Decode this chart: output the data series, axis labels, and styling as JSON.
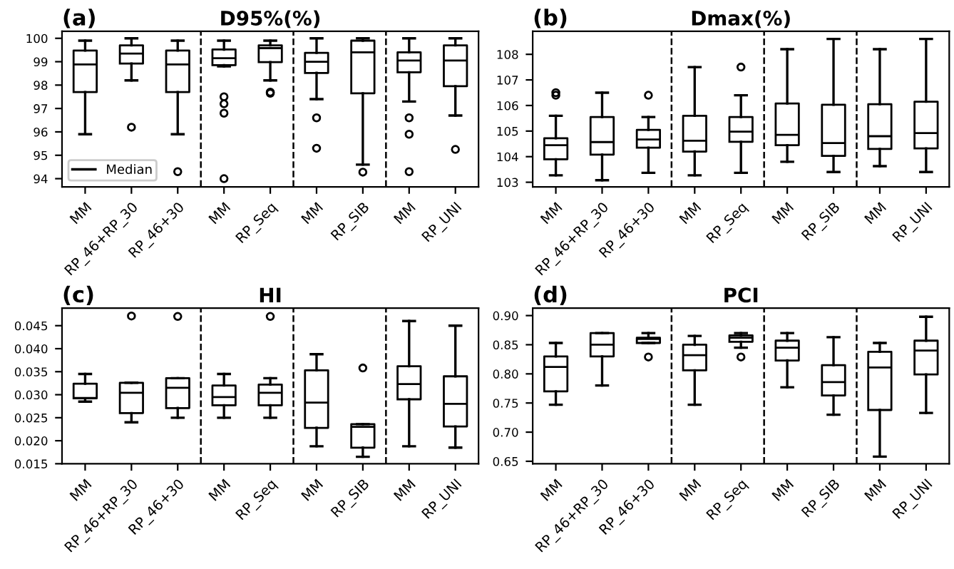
{
  "chart_data": [
    {
      "type": "box",
      "title": "D95%(%)",
      "annotations": [
        "(a)"
      ],
      "categories": [
        "MM",
        "RP_46+RP_30",
        "RP_46+30",
        "MM",
        "RP_Seq",
        "MM",
        "RP_SIB",
        "MM",
        "RP_UNI"
      ],
      "series": [
        {
          "name": "Median",
          "color": "#000000",
          "boxes": [
            {
              "low": 95.9,
              "q1": 97.7,
              "median": 98.88,
              "q3": 99.48,
              "high": 99.9
            },
            {
              "low": 98.2,
              "q1": 98.92,
              "median": 99.35,
              "q3": 99.7,
              "high": 100,
              "outliers": [
                96.2
              ]
            },
            {
              "low": 95.9,
              "q1": 97.7,
              "median": 98.88,
              "q3": 99.48,
              "high": 99.9,
              "outliers": [
                94.3
              ]
            },
            {
              "low": 98.8,
              "q1": 98.85,
              "median": 99.15,
              "q3": 99.52,
              "high": 99.9,
              "outliers": [
                97.5,
                97.2,
                96.8,
                94.0
              ]
            },
            {
              "low": 98.2,
              "q1": 98.98,
              "median": 99.58,
              "q3": 99.7,
              "high": 99.9,
              "outliers": [
                97.7,
                97.65
              ]
            },
            {
              "low": 97.4,
              "q1": 98.52,
              "median": 99.0,
              "q3": 99.38,
              "high": 100,
              "outliers": [
                96.6,
                95.3
              ]
            },
            {
              "low": 94.6,
              "q1": 97.65,
              "median": 99.4,
              "q3": 99.9,
              "high": 100,
              "outliers": [
                94.28
              ]
            },
            {
              "low": 97.3,
              "q1": 98.55,
              "median": 99.05,
              "q3": 99.4,
              "high": 100,
              "outliers": [
                96.6,
                95.9,
                94.3
              ]
            },
            {
              "low": 96.7,
              "q1": 97.95,
              "median": 99.05,
              "q3": 99.7,
              "high": 100,
              "outliers": [
                95.25
              ]
            }
          ]
        }
      ],
      "ylim": [
        93.65,
        100.3
      ],
      "yticks": [
        94,
        95,
        96,
        97,
        98,
        99,
        100
      ],
      "legend": "bottom left"
    },
    {
      "type": "box",
      "title": "Dmax(%)",
      "annotations": [
        "(b)"
      ],
      "categories": [
        "MM",
        "RP_46+RP_30",
        "RP_46+30",
        "MM",
        "RP_Seq",
        "MM",
        "RP_SIB",
        "MM",
        "RP_UNI"
      ],
      "boxes": [
        {
          "low": 103.27,
          "q1": 103.9,
          "median": 104.45,
          "q3": 104.72,
          "high": 105.6,
          "outliers": [
            106.5,
            106.4
          ]
        },
        {
          "low": 103.08,
          "q1": 104.08,
          "median": 104.57,
          "q3": 105.55,
          "high": 106.5
        },
        {
          "low": 103.37,
          "q1": 104.35,
          "median": 104.67,
          "q3": 105.05,
          "high": 105.55,
          "outliers": [
            106.4
          ]
        },
        {
          "low": 103.27,
          "q1": 104.2,
          "median": 104.62,
          "q3": 105.6,
          "high": 107.5
        },
        {
          "low": 103.37,
          "q1": 104.58,
          "median": 104.98,
          "q3": 105.55,
          "high": 106.4,
          "outliers": [
            107.5
          ]
        },
        {
          "low": 103.8,
          "q1": 104.45,
          "median": 104.85,
          "q3": 106.08,
          "high": 108.2
        },
        {
          "low": 103.4,
          "q1": 104.03,
          "median": 104.53,
          "q3": 106.03,
          "high": 108.6
        },
        {
          "low": 103.63,
          "q1": 104.3,
          "median": 104.8,
          "q3": 106.05,
          "high": 108.2
        },
        {
          "low": 103.4,
          "q1": 104.32,
          "median": 104.92,
          "q3": 106.15,
          "high": 108.6
        }
      ],
      "ylim": [
        102.82,
        108.9
      ],
      "yticks": [
        103,
        104,
        105,
        106,
        107,
        108
      ]
    },
    {
      "type": "box",
      "title": "HI",
      "annotations": [
        "(c)"
      ],
      "categories": [
        "MM",
        "RP_46+RP_30",
        "RP_46+30",
        "MM",
        "RP_Seq",
        "MM",
        "RP_SIB",
        "MM",
        "RP_UNI"
      ],
      "boxes": [
        {
          "low": 0.0285,
          "q1": 0.0292,
          "median": 0.0293,
          "q3": 0.0324,
          "high": 0.0345
        },
        {
          "low": 0.024,
          "q1": 0.026,
          "median": 0.0304,
          "q3": 0.0326,
          "high": 0.0326,
          "outliers": [
            0.0471
          ]
        },
        {
          "low": 0.025,
          "q1": 0.0271,
          "median": 0.0315,
          "q3": 0.0336,
          "high": 0.0336,
          "outliers": [
            0.047
          ]
        },
        {
          "low": 0.025,
          "q1": 0.0277,
          "median": 0.0295,
          "q3": 0.032,
          "high": 0.0345
        },
        {
          "low": 0.025,
          "q1": 0.0277,
          "median": 0.0304,
          "q3": 0.0322,
          "high": 0.0336,
          "outliers": [
            0.047
          ]
        },
        {
          "low": 0.0188,
          "q1": 0.0228,
          "median": 0.0283,
          "q3": 0.0353,
          "high": 0.0388
        },
        {
          "low": 0.0165,
          "q1": 0.0185,
          "median": 0.023,
          "q3": 0.0236,
          "high": 0.0236,
          "outliers": [
            0.0358
          ]
        },
        {
          "low": 0.0188,
          "q1": 0.029,
          "median": 0.0323,
          "q3": 0.0362,
          "high": 0.046
        },
        {
          "low": 0.0185,
          "q1": 0.0231,
          "median": 0.028,
          "q3": 0.034,
          "high": 0.045
        }
      ],
      "ylim": [
        0.015,
        0.0488
      ],
      "yticks": [
        {
          "value": 0.015,
          "label": "0.015"
        },
        {
          "value": 0.02,
          "label": "0.020"
        },
        {
          "value": 0.025,
          "label": "0.025"
        },
        {
          "value": 0.03,
          "label": "0.030"
        },
        {
          "value": 0.035,
          "label": "0.035"
        },
        {
          "value": 0.04,
          "label": "0.040"
        },
        {
          "value": 0.045,
          "label": "0.045"
        }
      ]
    },
    {
      "type": "box",
      "title": "PCI",
      "annotations": [
        "(d)"
      ],
      "categories": [
        "MM",
        "RP_46+RP_30",
        "RP_46+30",
        "MM",
        "RP_Seq",
        "MM",
        "RP_SIB",
        "MM",
        "RP_UNI"
      ],
      "boxes": [
        {
          "low": 0.747,
          "q1": 0.77,
          "median": 0.812,
          "q3": 0.83,
          "high": 0.853
        },
        {
          "low": 0.78,
          "q1": 0.83,
          "median": 0.85,
          "q3": 0.87,
          "high": 0.87
        },
        {
          "low": 0.853,
          "q1": 0.853,
          "median": 0.86,
          "q3": 0.862,
          "high": 0.87,
          "outliers": [
            0.829
          ]
        },
        {
          "low": 0.747,
          "q1": 0.806,
          "median": 0.832,
          "q3": 0.85,
          "high": 0.865
        },
        {
          "low": 0.845,
          "q1": 0.855,
          "median": 0.862,
          "q3": 0.866,
          "high": 0.87,
          "outliers": [
            0.829
          ]
        },
        {
          "low": 0.777,
          "q1": 0.823,
          "median": 0.845,
          "q3": 0.857,
          "high": 0.87
        },
        {
          "low": 0.73,
          "q1": 0.763,
          "median": 0.786,
          "q3": 0.815,
          "high": 0.863
        },
        {
          "low": 0.658,
          "q1": 0.738,
          "median": 0.811,
          "q3": 0.838,
          "high": 0.853
        },
        {
          "low": 0.733,
          "q1": 0.799,
          "median": 0.84,
          "q3": 0.857,
          "high": 0.898
        }
      ],
      "ylim": [
        0.6458,
        0.9127
      ],
      "yticks": [
        {
          "value": 0.65,
          "label": "0.65"
        },
        {
          "value": 0.7,
          "label": "0.70"
        },
        {
          "value": 0.75,
          "label": "0.75"
        },
        {
          "value": 0.8,
          "label": "0.80"
        },
        {
          "value": 0.85,
          "label": "0.85"
        },
        {
          "value": 0.9,
          "label": "0.90"
        }
      ]
    }
  ]
}
